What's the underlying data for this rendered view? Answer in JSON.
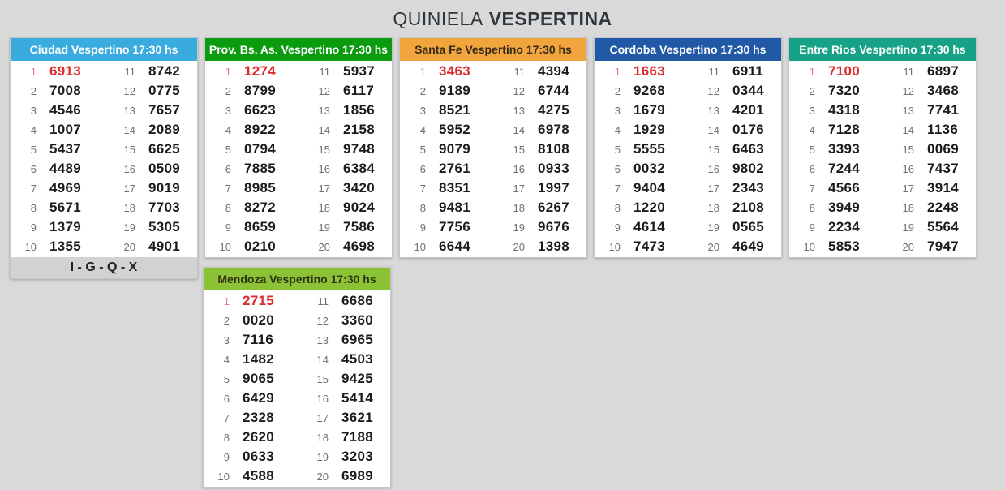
{
  "header": {
    "title_regular": "QUINIELA",
    "title_bold": "VESPERTINA"
  },
  "positions": {
    "left": [
      "1",
      "2",
      "3",
      "4",
      "5",
      "6",
      "7",
      "8",
      "9",
      "10"
    ],
    "right": [
      "11",
      "12",
      "13",
      "14",
      "15",
      "16",
      "17",
      "18",
      "19",
      "20"
    ]
  },
  "colors": {
    "page_background": "#d9d9d9",
    "first_prize_number": "#dc2b2b",
    "first_prize_position": "#e27d7d",
    "position_gray": "#6f6f6f",
    "number_dark": "#1b1b1b",
    "footer_background": "#d2d2d2"
  },
  "cards": [
    {
      "id": "ciudad",
      "row": 1,
      "title": "Ciudad Vespertino 17:30 hs",
      "header_bg": "#3aabdf",
      "header_text": "#ffffff",
      "footer": "I - G - Q - X",
      "left_values": [
        "6913",
        "7008",
        "4546",
        "1007",
        "5437",
        "4489",
        "4969",
        "5671",
        "1379",
        "1355"
      ],
      "right_values": [
        "8742",
        "0775",
        "7657",
        "2089",
        "6625",
        "0509",
        "9019",
        "7703",
        "5305",
        "4901"
      ]
    },
    {
      "id": "prov-bs-as",
      "row": 1,
      "title": "Prov. Bs. As. Vespertino 17:30 hs",
      "header_bg": "#0a9b0f",
      "header_text": "#ffffff",
      "left_values": [
        "1274",
        "8799",
        "6623",
        "8922",
        "0794",
        "7885",
        "8985",
        "8272",
        "8659",
        "0210"
      ],
      "right_values": [
        "5937",
        "6117",
        "1856",
        "2158",
        "9748",
        "6384",
        "3420",
        "9024",
        "7586",
        "4698"
      ]
    },
    {
      "id": "santa-fe",
      "row": 1,
      "title": "Santa Fe Vespertino 17:30 hs",
      "header_bg": "#f2a53d",
      "header_text": "#33291a",
      "left_values": [
        "3463",
        "9189",
        "8521",
        "5952",
        "9079",
        "2761",
        "8351",
        "9481",
        "7756",
        "6644"
      ],
      "right_values": [
        "4394",
        "6744",
        "4275",
        "6978",
        "8108",
        "0933",
        "1997",
        "6267",
        "9676",
        "1398"
      ]
    },
    {
      "id": "cordoba",
      "row": 1,
      "title": "Cordoba Vespertino 17:30 hs",
      "header_bg": "#2159a6",
      "header_text": "#ffffff",
      "left_values": [
        "1663",
        "9268",
        "1679",
        "1929",
        "5555",
        "0032",
        "9404",
        "1220",
        "4614",
        "7473"
      ],
      "right_values": [
        "6911",
        "0344",
        "4201",
        "0176",
        "6463",
        "9802",
        "2343",
        "2108",
        "0565",
        "4649"
      ]
    },
    {
      "id": "entre-rios",
      "row": 1,
      "title": "Entre Rios Vespertino 17:30 hs",
      "header_bg": "#17a186",
      "header_text": "#ffffff",
      "left_values": [
        "7100",
        "7320",
        "4318",
        "7128",
        "3393",
        "7244",
        "4566",
        "3949",
        "2234",
        "5853"
      ],
      "right_values": [
        "6897",
        "3468",
        "7741",
        "1136",
        "0069",
        "7437",
        "3914",
        "2248",
        "5564",
        "7947"
      ]
    },
    {
      "id": "mendoza",
      "row": 2,
      "title": "Mendoza Vespertino 17:30 hs",
      "header_bg": "#8cc236",
      "header_text": "#2f3310",
      "left_values": [
        "2715",
        "0020",
        "7116",
        "1482",
        "9065",
        "6429",
        "2328",
        "2620",
        "0633",
        "4588"
      ],
      "right_values": [
        "6686",
        "3360",
        "6965",
        "4503",
        "9425",
        "5414",
        "3621",
        "7188",
        "3203",
        "6989"
      ]
    }
  ]
}
